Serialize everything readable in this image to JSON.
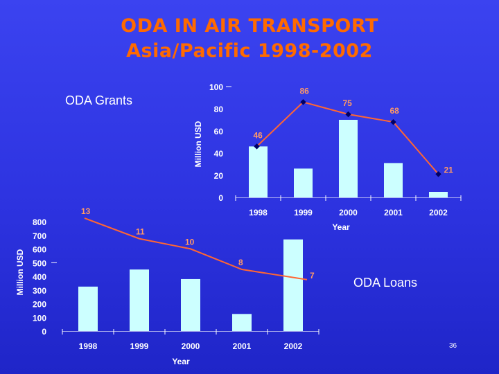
{
  "slide": {
    "title_line1": "ODA IN AIR TRANSPORT",
    "title_line2": "Asia/Pacific 1998-2002",
    "slide_number": "36"
  },
  "colors": {
    "title": "#ff6a00",
    "bars": "#ccffff",
    "line": "#ff6633",
    "marker": "#000066",
    "ticks": "#ffffff",
    "values": "#ff9966"
  },
  "chart_data": [
    {
      "type": "bar",
      "title": "ODA Grants",
      "xlabel": "Year",
      "ylabel": "Million USD",
      "categories": [
        "1998",
        "1999",
        "2000",
        "2001",
        "2002"
      ],
      "ylim": [
        0,
        100
      ],
      "yticks": [
        0,
        20,
        40,
        60,
        80,
        100
      ],
      "series": [
        {
          "type": "bar",
          "values": [
            46,
            26,
            70,
            31,
            5
          ]
        },
        {
          "type": "line",
          "values": [
            46,
            86,
            75,
            68,
            21
          ]
        }
      ],
      "data_labels": [
        "46",
        "86",
        "75",
        "68",
        "21"
      ]
    },
    {
      "type": "bar",
      "title": "ODA Loans",
      "xlabel": "Year",
      "ylabel": "Million USD",
      "categories": [
        "1998",
        "1999",
        "2000",
        "2001",
        "2002"
      ],
      "ylim": [
        0,
        800
      ],
      "yticks": [
        0,
        100,
        200,
        300,
        400,
        500,
        600,
        700,
        800
      ],
      "series": [
        {
          "type": "bar",
          "values": [
            325,
            450,
            380,
            125,
            670
          ]
        },
        {
          "type": "line",
          "values": [
            13,
            11,
            10,
            8,
            7
          ]
        }
      ],
      "data_labels": [
        "13",
        "11",
        "10",
        "8",
        "7"
      ]
    }
  ]
}
